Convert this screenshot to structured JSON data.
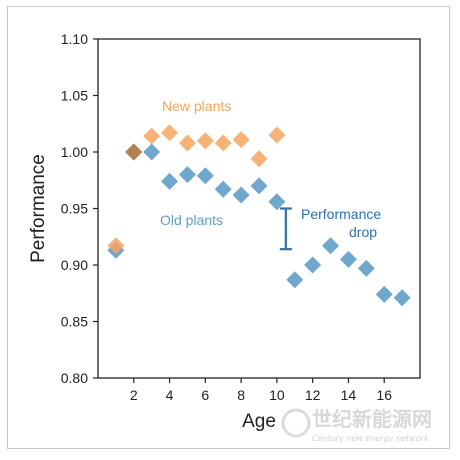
{
  "chart_data": {
    "type": "scatter",
    "xlabel": "Age",
    "ylabel": "Performance",
    "xlim": [
      0,
      18
    ],
    "ylim": [
      0.8,
      1.1
    ],
    "xticks": [
      2,
      4,
      6,
      8,
      10,
      12,
      14,
      16
    ],
    "yticks": [
      "0.80",
      "0.85",
      "0.90",
      "0.95",
      "1.00",
      "1.05",
      "1.10"
    ],
    "grid": false,
    "series": [
      {
        "name": "New plants",
        "color": "#f5a55f",
        "marker": "diamond",
        "x": [
          1,
          2,
          3,
          4,
          5,
          6,
          7,
          8,
          9,
          10
        ],
        "y": [
          0.917,
          1.0,
          1.014,
          1.017,
          1.008,
          1.01,
          1.008,
          1.011,
          0.994,
          1.015
        ]
      },
      {
        "name": "Old plants",
        "color": "#5f9dc8",
        "marker": "diamond",
        "x": [
          1,
          2,
          3,
          4,
          5,
          6,
          7,
          8,
          9,
          10,
          11,
          12,
          13,
          14,
          15,
          16,
          17
        ],
        "y": [
          0.913,
          1.0,
          1.0,
          0.974,
          0.98,
          0.979,
          0.967,
          0.962,
          0.97,
          0.956,
          0.887,
          0.9,
          0.917,
          0.905,
          0.897,
          0.874,
          0.871
        ]
      }
    ],
    "overlap_color": "#b5804f",
    "annotations": {
      "new_label": "New plants",
      "old_label": "Old plants",
      "drop_label_line1": "Performance",
      "drop_label_line2": "drop",
      "drop_color": "#2e72a8",
      "drop_x": 10.5,
      "drop_y_range": [
        0.914,
        0.95
      ]
    }
  },
  "watermark": {
    "text_cn": "世纪新能源网",
    "text_en": "Century new energy network"
  }
}
